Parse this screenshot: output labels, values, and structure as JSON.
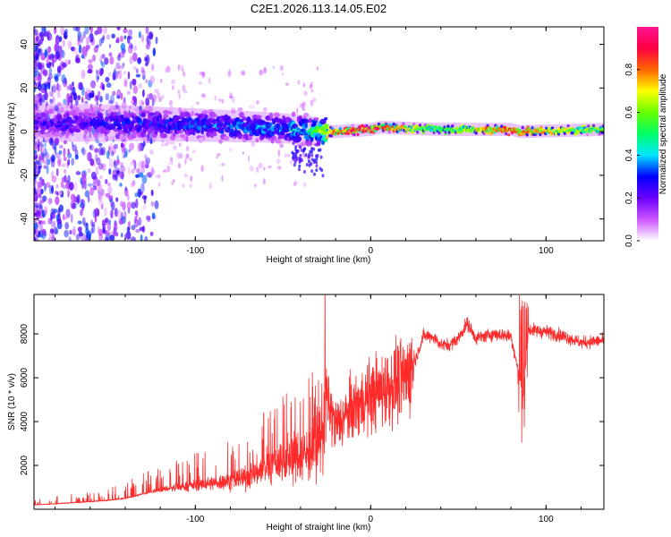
{
  "title": "C2E1.2026.113.14.05.E02",
  "colors": {
    "line": "#ff2a2a",
    "colormap": [
      "#ffffff",
      "#cc55ff",
      "#6a00ff",
      "#0000ff",
      "#00e5ff",
      "#00ff66",
      "#66ff00",
      "#ffff00",
      "#ff6600",
      "#ff0044",
      "#ff1493"
    ]
  },
  "chart_data": [
    {
      "type": "heatmap",
      "title": "C2E1.2026.113.14.05.E02",
      "xlabel": "Height of straight line (km)",
      "ylabel": "Frequency (Hz)",
      "xlim": [
        -192,
        133
      ],
      "ylim": [
        -50,
        48
      ],
      "xticks": [
        -100,
        0,
        100
      ],
      "xtick_labels": [
        "-100",
        "0",
        "100"
      ],
      "yticks": [
        -40,
        -20,
        0,
        20,
        40
      ],
      "ytick_labels": [
        "-40",
        "-20",
        "0",
        "20",
        "40"
      ],
      "colorbar": {
        "label": "Normalized spectral amplitude",
        "range": [
          0,
          1
        ],
        "ticks": [
          0.0,
          0.2,
          0.4,
          0.6,
          0.8
        ],
        "tick_labels": [
          "0.0",
          "0.2",
          "0.4",
          "0.6",
          "0.8"
        ]
      },
      "description_series": [
        {
          "name": "band_center_hz",
          "x": [
            -190,
            -150,
            -100,
            -60,
            -40,
            -30,
            -20,
            0,
            5,
            40,
            80,
            85,
            133
          ],
          "values": [
            4,
            4,
            3,
            2,
            1,
            0,
            0,
            1,
            2,
            1,
            1,
            0,
            1
          ]
        },
        {
          "name": "peak_amplitude",
          "x": [
            -190,
            -150,
            -100,
            -60,
            -40,
            -30,
            -20,
            0,
            5,
            40,
            80,
            85,
            133
          ],
          "values": [
            0.25,
            0.3,
            0.35,
            0.4,
            0.45,
            0.6,
            0.85,
            0.95,
            0.9,
            0.55,
            0.9,
            0.85,
            0.6
          ]
        }
      ]
    },
    {
      "type": "line",
      "title": "",
      "xlabel": "Height of straight line (km)",
      "ylabel": "SNR (10 * v/v)",
      "xlim": [
        -192,
        133
      ],
      "ylim": [
        0,
        9800
      ],
      "xticks": [
        -100,
        0,
        100
      ],
      "xtick_labels": [
        "-100",
        "0",
        "100"
      ],
      "yticks": [
        2000,
        4000,
        6000,
        8000
      ],
      "ytick_labels": [
        "2000",
        "4000",
        "6000",
        "8000"
      ],
      "series": [
        {
          "name": "SNR",
          "x": [
            -192,
            -180,
            -170,
            -160,
            -150,
            -140,
            -130,
            -120,
            -110,
            -100,
            -90,
            -80,
            -70,
            -60,
            -50,
            -40,
            -30,
            -25,
            -20,
            -10,
            0,
            10,
            20,
            25,
            30,
            35,
            40,
            45,
            50,
            55,
            60,
            70,
            80,
            85,
            87,
            90,
            100,
            110,
            120,
            133
          ],
          "values": [
            200,
            250,
            300,
            350,
            400,
            500,
            700,
            900,
            1000,
            1100,
            1200,
            1300,
            1500,
            1900,
            2300,
            2500,
            2700,
            5000,
            3800,
            4600,
            5200,
            5600,
            6000,
            6700,
            7900,
            7900,
            7500,
            7500,
            7800,
            8500,
            7800,
            8000,
            7900,
            6000,
            5200,
            8200,
            8100,
            7900,
            7600,
            7700
          ]
        }
      ]
    }
  ]
}
